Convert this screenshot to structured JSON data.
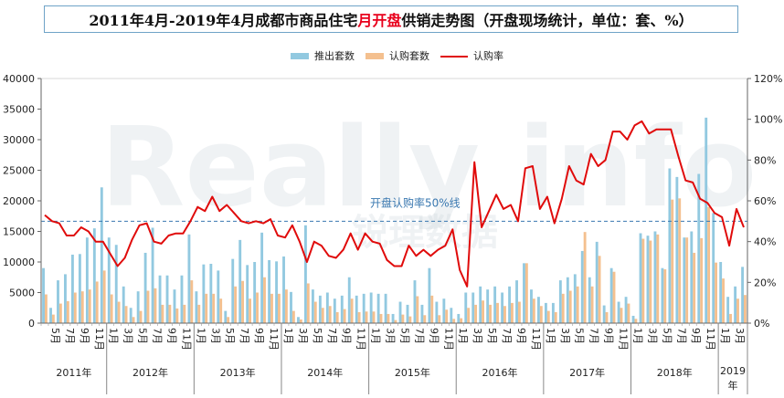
{
  "title": {
    "part1": "2011年4月-2019年4月成都市商品住宅",
    "highlight": "月开盘",
    "part2": "供销走势图（开盘现场统计，单位：套、%）"
  },
  "watermark": {
    "text1": "Really info",
    "text2": "锐理数据"
  },
  "colors": {
    "supply": "#92c9e0",
    "sales": "#f4c08f",
    "rate": "#e00b0b",
    "ref_line": "#3a78b0",
    "ref_label": "#3a78b0",
    "title_border": "#6fa3c7",
    "highlight": "#e8001c"
  },
  "chart_data": {
    "type": "bar",
    "title": "2011年4月-2019年4月成都市商品住宅月开盘供销走势图（开盘现场统计，单位：套、%）",
    "legend": {
      "placement": "top-center",
      "entries": [
        "推出套数",
        "认购套数",
        "认购率"
      ]
    },
    "y_left": {
      "min": 0,
      "max": 40000,
      "ticks": [
        "0",
        "5000",
        "10000",
        "15000",
        "20000",
        "25000",
        "30000",
        "35000",
        "40000"
      ]
    },
    "y_right": {
      "min": 0,
      "max": 120,
      "ticks": [
        "0%",
        "20%",
        "40%",
        "60%",
        "80%",
        "100%",
        "120%"
      ]
    },
    "reference_line": {
      "value": 50,
      "axis": "right",
      "label": "开盘认购率50%线"
    },
    "month_ticks": [
      "1月",
      "3月",
      "5月",
      "7月",
      "9月",
      "11月"
    ],
    "years": [
      {
        "label": "2011年",
        "start": 0,
        "end": 9
      },
      {
        "label": "2012年",
        "start": 9,
        "end": 21
      },
      {
        "label": "2013年",
        "start": 21,
        "end": 33
      },
      {
        "label": "2014年",
        "start": 33,
        "end": 45
      },
      {
        "label": "2015年",
        "start": 45,
        "end": 57
      },
      {
        "label": "2016年",
        "start": 57,
        "end": 69
      },
      {
        "label": "2017年",
        "start": 69,
        "end": 81
      },
      {
        "label": "2018年",
        "start": 81,
        "end": 93
      },
      {
        "label": "2019年",
        "start": 93,
        "end": 97
      }
    ],
    "months": [
      "4",
      "5",
      "6",
      "7",
      "8",
      "9",
      "10",
      "11",
      "12",
      "1",
      "2",
      "3",
      "4",
      "5",
      "6",
      "7",
      "8",
      "9",
      "10",
      "11",
      "12",
      "1",
      "2",
      "3",
      "4",
      "5",
      "6",
      "7",
      "8",
      "9",
      "10",
      "11",
      "12",
      "1",
      "2",
      "3",
      "4",
      "5",
      "6",
      "7",
      "8",
      "9",
      "10",
      "11",
      "12",
      "1",
      "2",
      "3",
      "4",
      "5",
      "6",
      "7",
      "8",
      "9",
      "10",
      "11",
      "12",
      "1",
      "2",
      "3",
      "4",
      "5",
      "6",
      "7",
      "8",
      "9",
      "10",
      "11",
      "12",
      "1",
      "2",
      "3",
      "4",
      "5",
      "6",
      "7",
      "8",
      "9",
      "10",
      "11",
      "12",
      "1",
      "2",
      "3",
      "4",
      "5",
      "6",
      "7",
      "8",
      "9",
      "10",
      "11",
      "12",
      "1",
      "2",
      "3",
      "4"
    ],
    "series": [
      {
        "name": "推出套数",
        "type": "bar",
        "axis": "left",
        "values": [
          9000,
          2500,
          7000,
          8000,
          11200,
          11300,
          14000,
          15500,
          22200,
          14000,
          12800,
          6000,
          2500,
          5200,
          11500,
          15600,
          7800,
          7800,
          5500,
          7800,
          14500,
          5200,
          9600,
          9700,
          8600,
          2000,
          10500,
          13600,
          9500,
          10000,
          14800,
          10300,
          10100,
          10900,
          5100,
          1000,
          16000,
          5500,
          4500,
          5000,
          4000,
          4500,
          7500,
          4500,
          4800,
          5000,
          4800,
          4800,
          1500,
          3500,
          3000,
          7000,
          3000,
          9000,
          3500,
          4000,
          2500,
          1500,
          5000,
          5000,
          6000,
          5500,
          6000,
          5000,
          6000,
          7000,
          9800,
          5500,
          4300,
          3300,
          3300,
          7000,
          7500,
          8000,
          11800,
          7500,
          13300,
          2900,
          9000,
          3500,
          4300,
          1200,
          14700,
          14300,
          15000,
          9000,
          25300,
          23900,
          14000,
          15000,
          24400,
          33600,
          18000,
          10000,
          4300,
          6000,
          9200
        ],
        "color": "#92c9e0"
      },
      {
        "name": "认购套数",
        "type": "bar",
        "axis": "left",
        "values": [
          4700,
          1400,
          3200,
          3600,
          5000,
          5200,
          5500,
          6800,
          8600,
          4700,
          3500,
          2800,
          1000,
          2000,
          5300,
          5700,
          3000,
          3000,
          2400,
          3000,
          7000,
          3000,
          4800,
          4800,
          4000,
          1000,
          6000,
          6900,
          4000,
          5000,
          7500,
          4800,
          4800,
          5500,
          2000,
          600,
          6500,
          3500,
          2500,
          2800,
          1800,
          2300,
          4000,
          1800,
          1900,
          1900,
          1500,
          1500,
          500,
          1400,
          1100,
          4400,
          1300,
          4500,
          1300,
          2200,
          700,
          800,
          2500,
          3000,
          3700,
          3000,
          3300,
          2800,
          3300,
          3500,
          9800,
          4000,
          2800,
          2000,
          1800,
          4800,
          5300,
          6000,
          14900,
          6000,
          11000,
          1800,
          8400,
          2500,
          3200,
          700,
          13800,
          13500,
          14500,
          8800,
          20200,
          20400,
          14000,
          11500,
          13900,
          19000,
          9900,
          7300,
          1500,
          4000,
          4600
        ],
        "color": "#f4c08f"
      },
      {
        "name": "认购率",
        "type": "line",
        "axis": "right",
        "values": [
          53,
          50,
          49,
          43,
          43,
          47,
          45,
          40,
          40,
          34,
          28,
          32,
          41,
          48,
          49,
          40,
          39,
          43,
          44,
          44,
          50,
          57,
          55,
          62,
          55,
          58,
          54,
          50,
          49,
          50,
          49,
          51,
          43,
          42,
          48,
          40,
          30,
          40,
          38,
          33,
          32,
          36,
          44,
          36,
          44,
          40,
          39,
          31,
          28,
          28,
          38,
          33,
          36,
          33,
          36,
          38,
          46,
          26,
          18,
          79,
          47,
          55,
          63,
          56,
          58,
          50,
          76,
          77,
          56,
          62,
          49,
          61,
          77,
          70,
          68,
          83,
          77,
          80,
          94,
          94,
          90,
          97,
          99,
          93,
          95,
          95,
          95,
          82,
          70,
          69,
          61,
          59,
          54,
          52,
          38,
          56,
          47
        ],
        "color": "#e00b0b"
      }
    ]
  }
}
